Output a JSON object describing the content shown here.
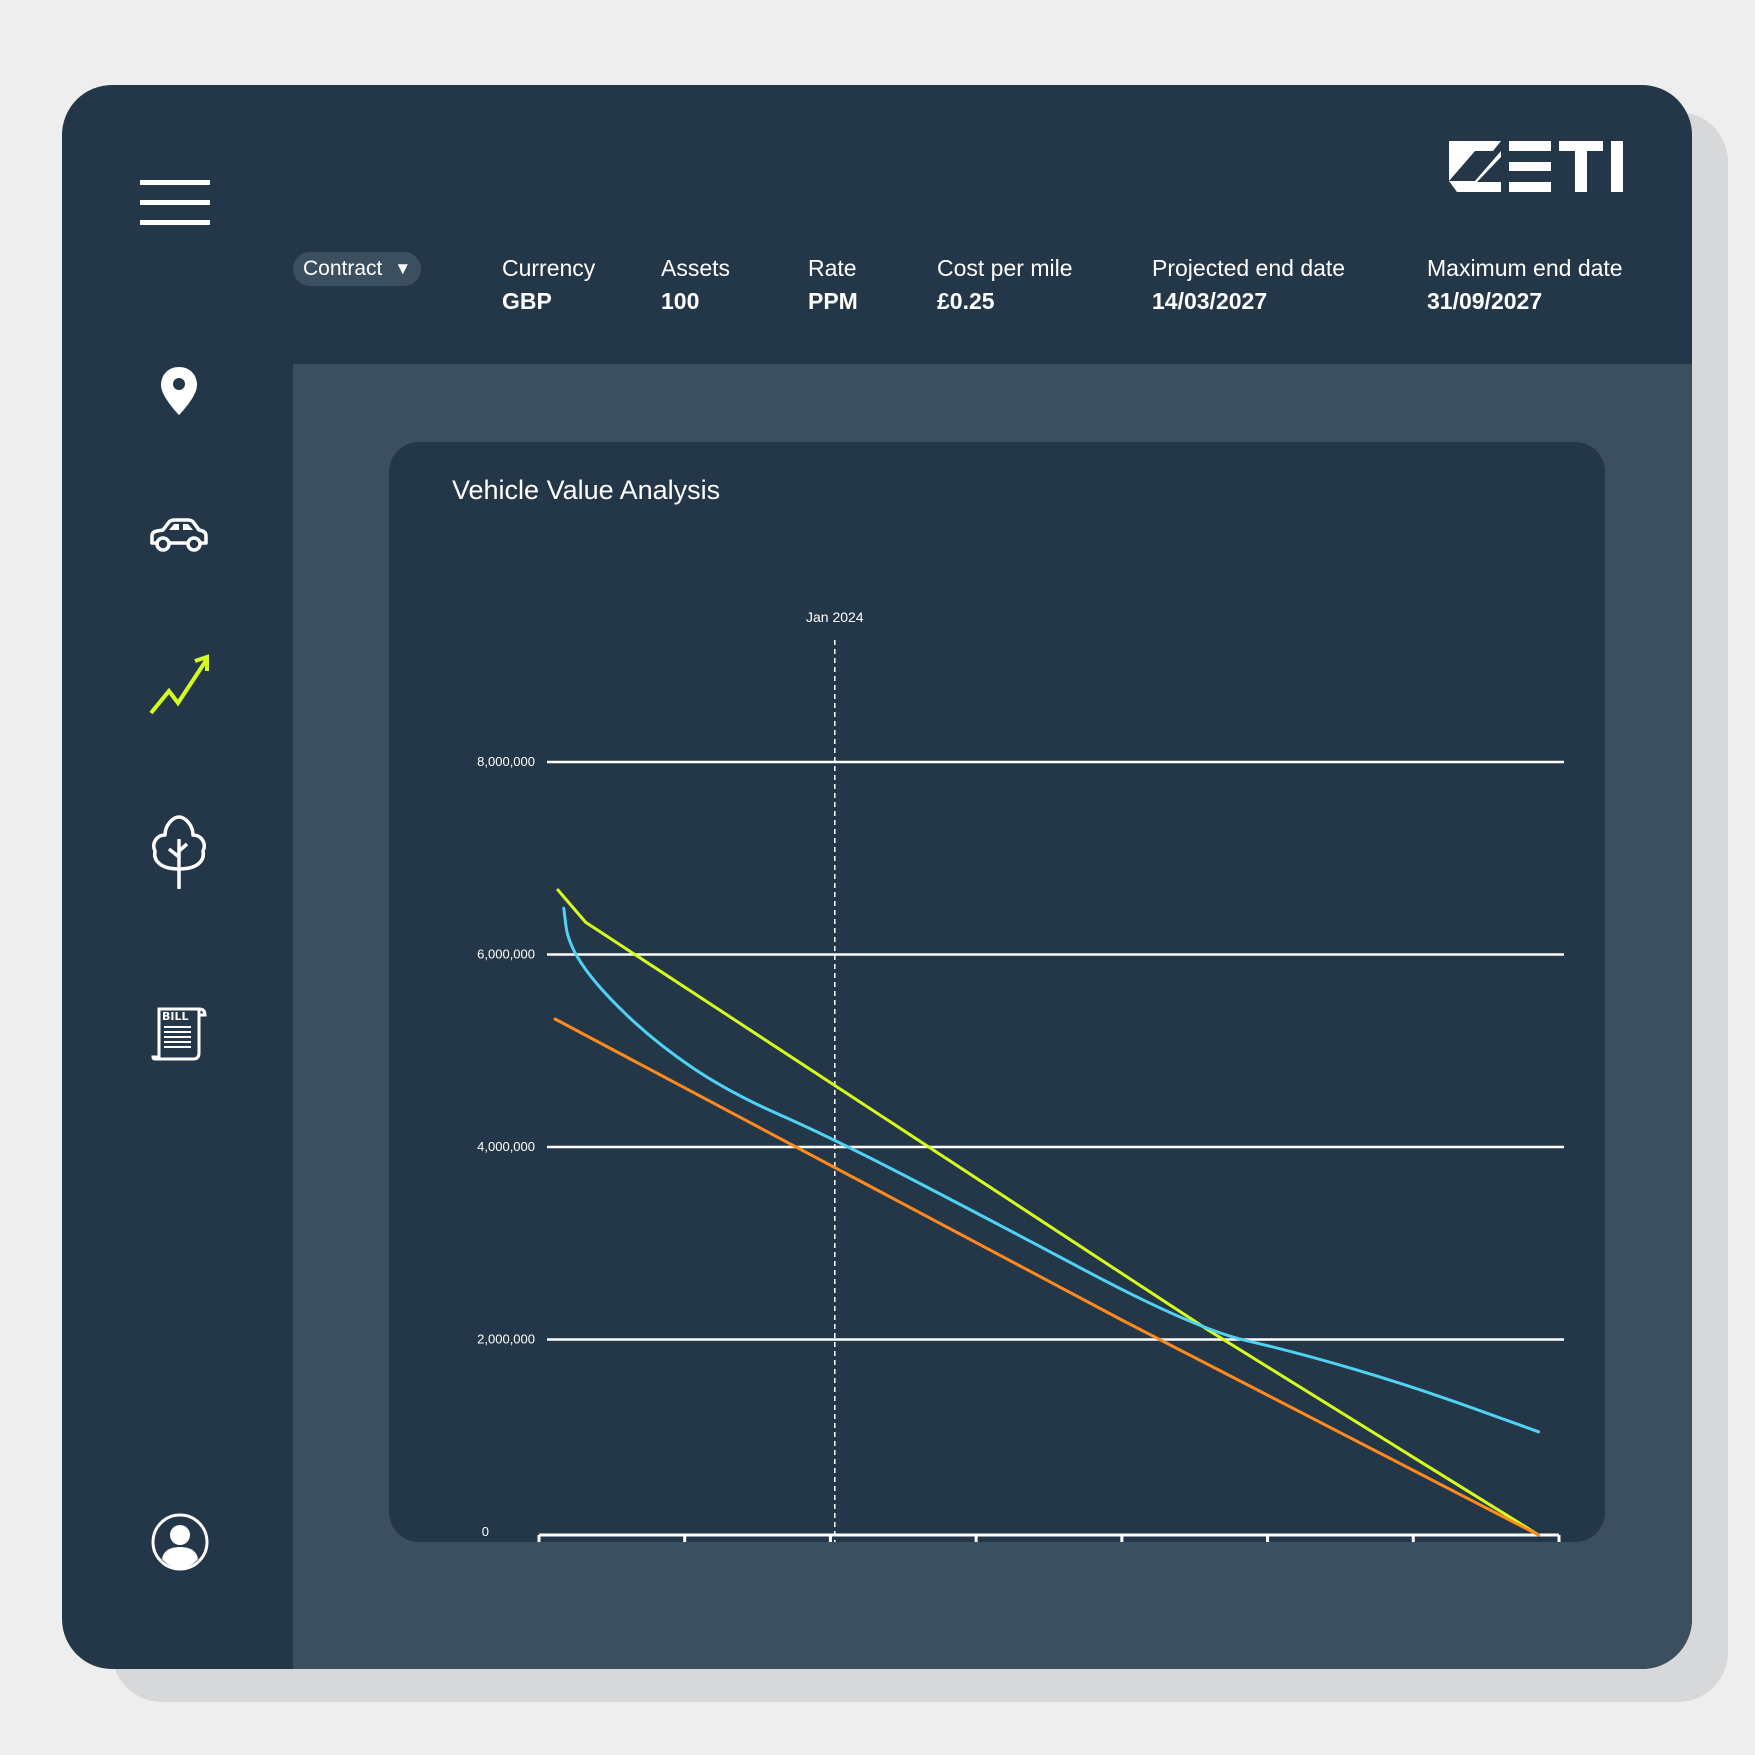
{
  "app": {
    "brand": "ZETI",
    "colors": {
      "background": "#243748",
      "panel": "#3c4f5e",
      "accent": "#d7ff1e"
    }
  },
  "sidebar": {
    "items": [
      {
        "name": "menu",
        "icon": "hamburger-menu-icon"
      },
      {
        "name": "location",
        "icon": "map-pin-icon"
      },
      {
        "name": "vehicles",
        "icon": "car-icon"
      },
      {
        "name": "analytics",
        "icon": "trending-up-icon",
        "active": true
      },
      {
        "name": "sustainability",
        "icon": "tree-icon"
      },
      {
        "name": "billing",
        "icon": "bill-icon",
        "icon_text": "BILL"
      },
      {
        "name": "profile",
        "icon": "user-profile-icon"
      }
    ]
  },
  "header": {
    "contract_label": "Contract",
    "contract_caret": "▼",
    "stats": [
      {
        "label": "Currency",
        "value": "GBP"
      },
      {
        "label": "Assets",
        "value": "100"
      },
      {
        "label": "Rate",
        "value": "PPM"
      },
      {
        "label": "Cost per mile",
        "value": "£0.25"
      },
      {
        "label": "Projected end date",
        "value": "14/03/2027"
      },
      {
        "label": "Maximum end date",
        "value": "31/09/2027"
      }
    ]
  },
  "chart": {
    "title": "Vehicle Value Analysis"
  },
  "chart_data": {
    "type": "line",
    "title": "Vehicle Value Analysis",
    "xlabel": "",
    "ylabel": "",
    "xlim": [
      2022,
      2029
    ],
    "ylim": [
      0,
      8000000
    ],
    "x_ticks": [
      "2022",
      "2023",
      "2024",
      "2025",
      "2026",
      "2027",
      "2028",
      "2029"
    ],
    "y_ticks": [
      "0",
      "2,000,000",
      "4,000,000",
      "6,000,000",
      "8,000,000"
    ],
    "grid": true,
    "marker_line": {
      "x": 2024.03,
      "label": "Jan 2024"
    },
    "series": [
      {
        "color": "#d7ff1e",
        "x": [
          2022.13,
          2022.32,
          2026.6,
          2028.86
        ],
        "y": [
          6000000,
          5700000,
          1900000,
          0
        ]
      },
      {
        "color": "#4fd2f5",
        "x": [
          2022.17,
          2022.2,
          2022.4,
          2022.8,
          2023.3,
          2024.0,
          2025.0,
          2026.5,
          2027.2,
          2028.0,
          2028.86
        ],
        "y": [
          5830000,
          5500000,
          5100000,
          4580000,
          4120000,
          3700000,
          3000000,
          1920000,
          1700000,
          1380000,
          960000
        ]
      },
      {
        "color": "#ff8a1e",
        "x": [
          2022.11,
          2026.0,
          2028.86
        ],
        "y": [
          4800000,
          2000000,
          0
        ]
      }
    ]
  }
}
